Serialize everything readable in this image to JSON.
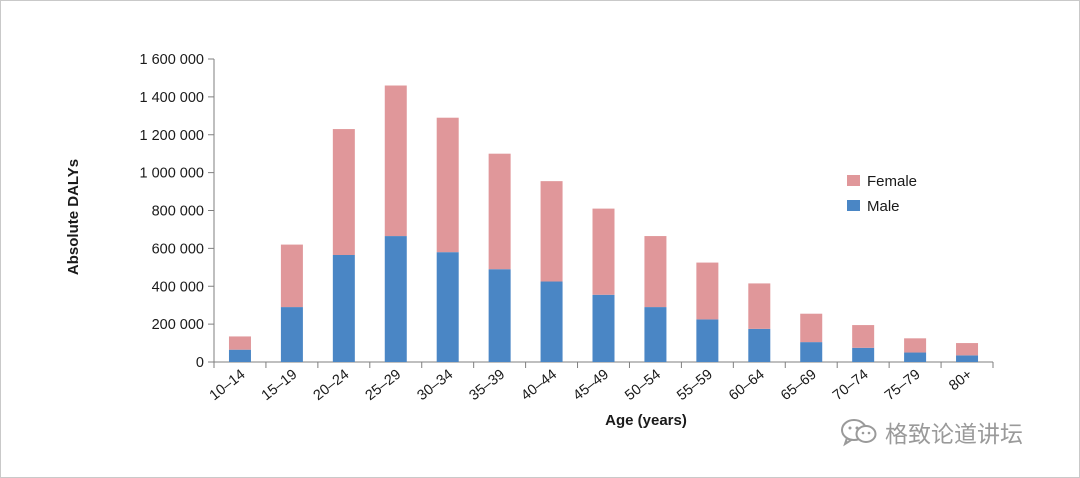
{
  "chart_data": {
    "type": "bar",
    "stacked": true,
    "categories": [
      "10–14",
      "15–19",
      "20–24",
      "25–29",
      "30–34",
      "35–39",
      "40–44",
      "45–49",
      "50–54",
      "55–59",
      "60–64",
      "65–69",
      "70–74",
      "75–79",
      "80+"
    ],
    "series": [
      {
        "name": "Male",
        "color": "#4a86c5",
        "values": [
          65000,
          290000,
          565000,
          665000,
          580000,
          490000,
          425000,
          355000,
          290000,
          225000,
          175000,
          105000,
          75000,
          50000,
          35000
        ]
      },
      {
        "name": "Female",
        "color": "#e0979a",
        "values": [
          70000,
          330000,
          665000,
          795000,
          710000,
          610000,
          530000,
          455000,
          375000,
          300000,
          240000,
          150000,
          120000,
          75000,
          65000
        ]
      }
    ],
    "ylabel": "Absolute DALYs",
    "xlabel": "Age (years)",
    "ylim": [
      0,
      1600000
    ],
    "yticks": [
      0,
      200000,
      400000,
      600000,
      800000,
      1000000,
      1200000,
      1400000,
      1600000
    ],
    "ytick_labels": [
      "0",
      "200 000",
      "400 000",
      "600 000",
      "800 000",
      "1 000 000",
      "1 200 000",
      "1 400 000",
      "1 600 000"
    ],
    "grid": false,
    "legend": {
      "position": "right",
      "entries": [
        "Female",
        "Male"
      ]
    }
  },
  "watermark": {
    "text": "格致论道讲坛",
    "icon": "wechat-icon"
  }
}
